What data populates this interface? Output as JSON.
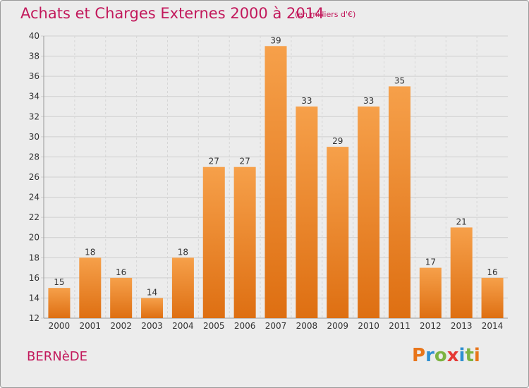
{
  "chart_data": {
    "type": "bar",
    "title": "Achats et Charges Externes 2000 à 2014",
    "subtitle": "(en milliers d'€)",
    "xlabel": "",
    "ylabel": "",
    "categories": [
      "2000",
      "2001",
      "2002",
      "2003",
      "2004",
      "2005",
      "2006",
      "2007",
      "2008",
      "2009",
      "2010",
      "2011",
      "2012",
      "2013",
      "2014"
    ],
    "values": [
      15,
      18,
      16,
      14,
      18,
      27,
      27,
      39,
      33,
      29,
      33,
      35,
      17,
      21,
      16
    ],
    "ylim": [
      12,
      40
    ],
    "yticks": [
      12,
      14,
      16,
      18,
      20,
      22,
      24,
      26,
      28,
      30,
      32,
      34,
      36,
      38,
      40
    ],
    "grid": true,
    "bar_color": "#f28c28"
  },
  "footer": {
    "place": "BERNèDE",
    "brand_letters": [
      "P",
      "r",
      "o",
      "x",
      "i",
      "t",
      "i"
    ],
    "brand_colors": [
      "#e8751a",
      "#2e8fd1",
      "#7cb342",
      "#e53935",
      "#2e8fd1",
      "#7cb342",
      "#e8751a"
    ]
  }
}
